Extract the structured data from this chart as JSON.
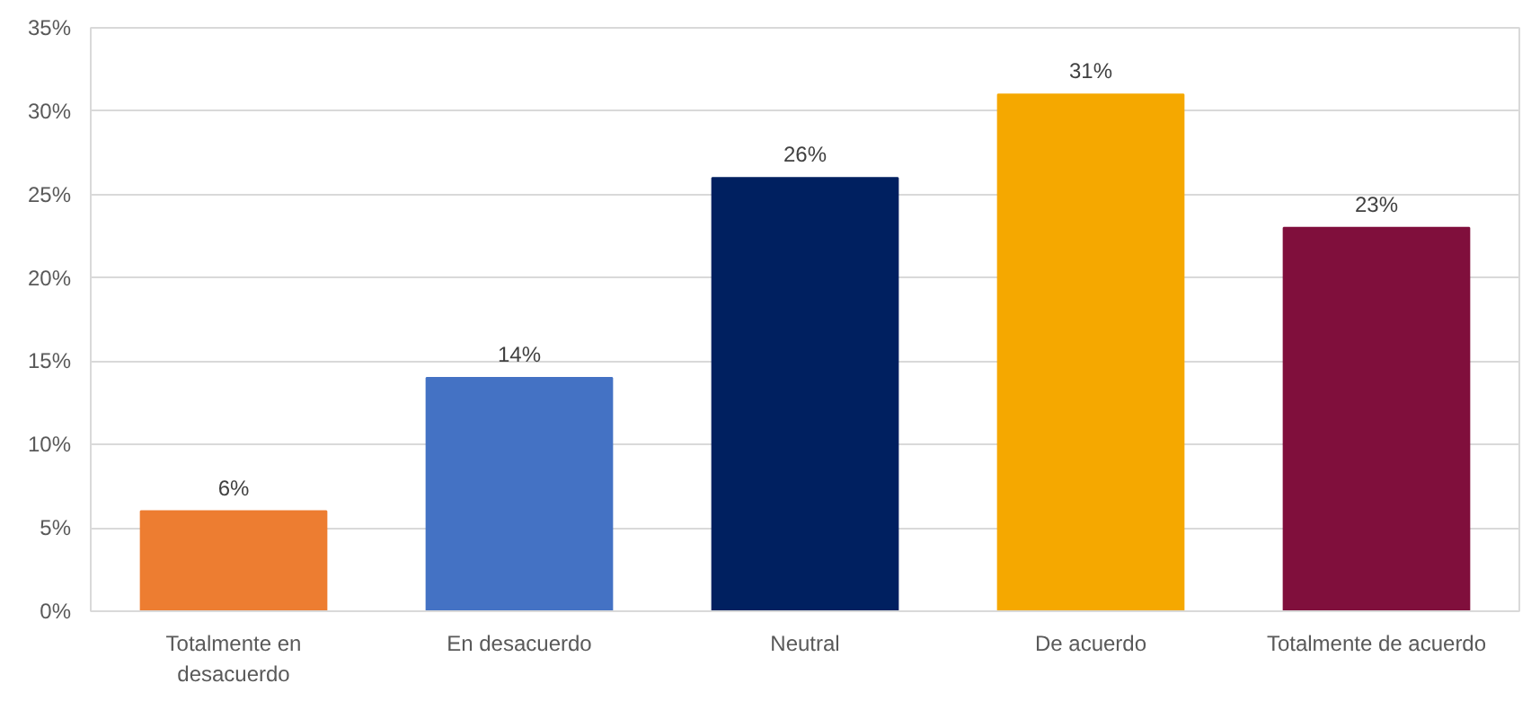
{
  "chart_data": {
    "type": "bar",
    "categories": [
      "Totalmente en desacuerdo",
      "En desacuerdo",
      "Neutral",
      "De acuerdo",
      "Totalmente de acuerdo"
    ],
    "values": [
      6,
      14,
      26,
      31,
      23
    ],
    "value_labels": [
      "6%",
      "14%",
      "26%",
      "31%",
      "23%"
    ],
    "colors": [
      "#ed7d31",
      "#4472c4",
      "#002060",
      "#f5a800",
      "#800f3c"
    ],
    "ylim": [
      0,
      35
    ],
    "yticks": [
      {
        "value": 0,
        "label": "0%"
      },
      {
        "value": 5,
        "label": "5%"
      },
      {
        "value": 10,
        "label": "10%"
      },
      {
        "value": 15,
        "label": "15%"
      },
      {
        "value": 20,
        "label": "20%"
      },
      {
        "value": 25,
        "label": "25%"
      },
      {
        "value": 30,
        "label": "30%"
      },
      {
        "value": 35,
        "label": "35%"
      }
    ],
    "grid": "y"
  }
}
